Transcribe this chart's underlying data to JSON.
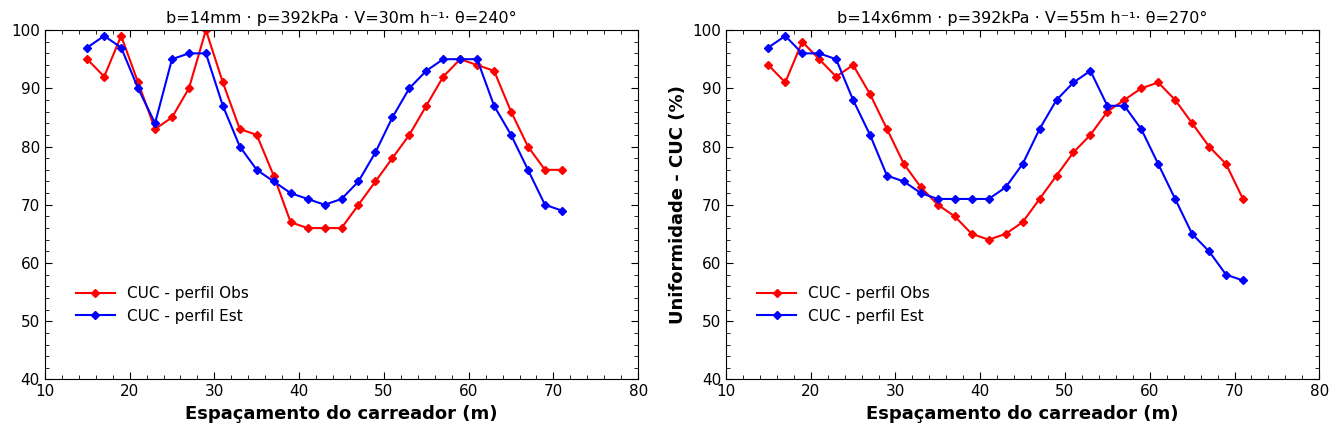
{
  "left": {
    "title": "b=14mm · p=392kPa · V=30m h⁻¹· θ=240°",
    "red_x": [
      15,
      17,
      19,
      21,
      23,
      25,
      27,
      29,
      31,
      33,
      35,
      37,
      39,
      41,
      43,
      45,
      47,
      49,
      51,
      53,
      55,
      57,
      59,
      61,
      63,
      65,
      67,
      69,
      71
    ],
    "red_y": [
      95,
      92,
      99,
      91,
      83,
      85,
      90,
      100,
      91,
      83,
      82,
      75,
      67,
      66,
      66,
      66,
      70,
      74,
      78,
      82,
      87,
      92,
      95,
      94,
      93,
      86,
      80,
      76,
      76
    ],
    "blue_x": [
      15,
      17,
      19,
      21,
      23,
      25,
      27,
      29,
      31,
      33,
      35,
      37,
      39,
      41,
      43,
      45,
      47,
      49,
      51,
      53,
      55,
      57,
      59,
      61,
      63,
      65,
      67,
      69,
      71
    ],
    "blue_y": [
      97,
      99,
      97,
      90,
      84,
      95,
      96,
      96,
      87,
      80,
      76,
      74,
      72,
      71,
      70,
      71,
      74,
      79,
      85,
      90,
      93,
      95,
      95,
      95,
      87,
      82,
      76,
      70,
      69
    ]
  },
  "right": {
    "title": "b=14x6mm · p=392kPa · V=55m h⁻¹· θ=270°",
    "red_x": [
      15,
      17,
      19,
      21,
      23,
      25,
      27,
      29,
      31,
      33,
      35,
      37,
      39,
      41,
      43,
      45,
      47,
      49,
      51,
      53,
      55,
      57,
      59,
      61,
      63,
      65,
      67,
      69,
      71
    ],
    "red_y": [
      94,
      91,
      98,
      95,
      92,
      94,
      89,
      83,
      77,
      73,
      70,
      68,
      65,
      64,
      65,
      67,
      71,
      75,
      79,
      82,
      86,
      88,
      90,
      91,
      88,
      84,
      80,
      77,
      71
    ],
    "blue_x": [
      15,
      17,
      19,
      21,
      23,
      25,
      27,
      29,
      31,
      33,
      35,
      37,
      39,
      41,
      43,
      45,
      47,
      49,
      51,
      53,
      55,
      57,
      59,
      61,
      63,
      65,
      67,
      69,
      71
    ],
    "blue_y": [
      97,
      99,
      96,
      96,
      95,
      88,
      82,
      75,
      74,
      72,
      71,
      71,
      71,
      71,
      73,
      77,
      83,
      88,
      91,
      93,
      87,
      87,
      83,
      77,
      71,
      65,
      62,
      58,
      57
    ]
  },
  "ylabel": "Uniformidade - CUC (%)",
  "xlabel": "Espaçamento do carreador (m)",
  "legend_obs": "CUC - perfil Obs",
  "legend_est": "CUC - perfil Est",
  "xlim": [
    10,
    80
  ],
  "ylim": [
    40,
    100
  ],
  "xticks": [
    10,
    20,
    30,
    40,
    50,
    60,
    70,
    80
  ],
  "yticks": [
    40,
    50,
    60,
    70,
    80,
    90,
    100
  ],
  "red_color": "#ff0000",
  "blue_color": "#0000ff",
  "marker": "D",
  "markersize": 4.0,
  "linewidth": 1.5,
  "title_fontsize": 11.5,
  "label_fontsize": 13,
  "tick_fontsize": 11,
  "legend_fontsize": 11
}
